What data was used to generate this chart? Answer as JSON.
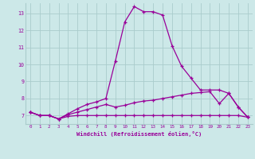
{
  "xlabel": "Windchill (Refroidissement éolien,°C)",
  "background_color": "#cce8e8",
  "grid_color": "#aacccc",
  "line_color": "#990099",
  "xmin": -0.5,
  "xmax": 23.5,
  "ymin": 6.5,
  "ymax": 13.6,
  "yticks": [
    7,
    8,
    9,
    10,
    11,
    12,
    13
  ],
  "xticks": [
    0,
    1,
    2,
    3,
    4,
    5,
    6,
    7,
    8,
    9,
    10,
    11,
    12,
    13,
    14,
    15,
    16,
    17,
    18,
    19,
    20,
    21,
    22,
    23
  ],
  "line1_x": [
    0,
    1,
    2,
    3,
    4,
    5,
    6,
    7,
    8,
    9,
    10,
    11,
    12,
    13,
    14,
    15,
    16,
    17,
    18,
    19,
    20,
    21,
    22,
    23
  ],
  "line1_y": [
    7.2,
    7.0,
    7.0,
    6.8,
    6.95,
    7.0,
    7.0,
    7.0,
    7.0,
    7.0,
    7.0,
    7.0,
    7.0,
    7.0,
    7.0,
    7.0,
    7.0,
    7.0,
    7.0,
    7.0,
    7.0,
    7.0,
    7.0,
    6.9
  ],
  "line2_x": [
    0,
    1,
    2,
    3,
    4,
    5,
    6,
    7,
    8,
    9,
    10,
    11,
    12,
    13,
    14,
    15,
    16,
    17,
    18,
    19,
    20,
    21,
    22,
    23
  ],
  "line2_y": [
    7.2,
    7.0,
    7.0,
    6.8,
    7.05,
    7.2,
    7.35,
    7.5,
    7.65,
    7.5,
    7.6,
    7.75,
    7.85,
    7.9,
    8.0,
    8.1,
    8.2,
    8.3,
    8.35,
    8.4,
    7.7,
    8.3,
    7.5,
    6.9
  ],
  "line3_x": [
    0,
    1,
    2,
    3,
    4,
    5,
    6,
    7,
    8,
    9,
    10,
    11,
    12,
    13,
    14,
    15,
    16,
    17,
    18,
    19,
    20,
    21,
    22,
    23
  ],
  "line3_y": [
    7.2,
    7.0,
    7.0,
    6.8,
    7.1,
    7.4,
    7.65,
    7.8,
    8.0,
    10.2,
    12.5,
    13.4,
    13.1,
    13.1,
    12.9,
    11.1,
    9.9,
    9.2,
    8.5,
    8.5,
    8.5,
    8.3,
    7.5,
    6.9
  ]
}
